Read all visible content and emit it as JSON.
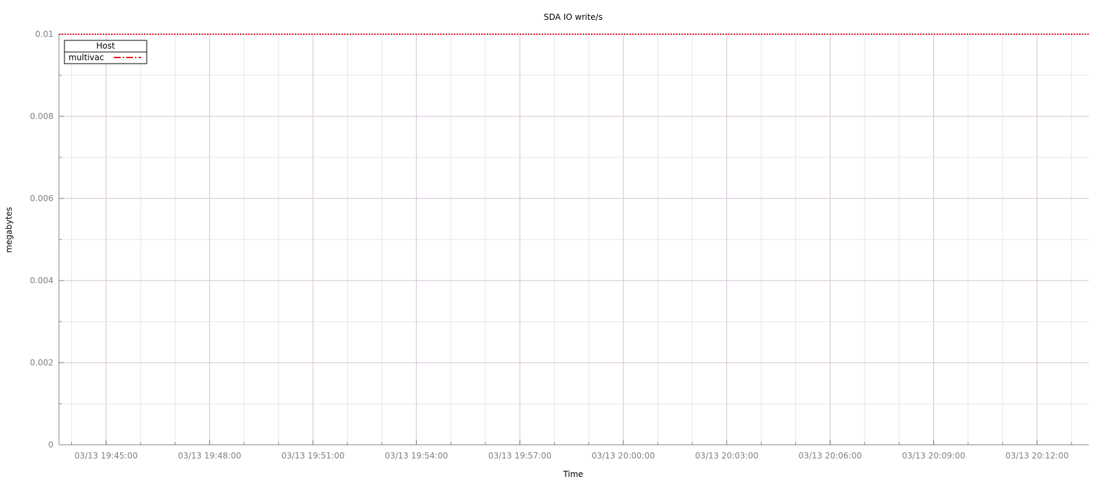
{
  "chart_data": {
    "type": "line",
    "title": "SDA IO write/s",
    "xlabel": "Time",
    "ylabel": "megabytes",
    "ylim": [
      0,
      0.01
    ],
    "y_ticks": [
      "0",
      "0.002",
      "0.004",
      "0.006",
      "0.008",
      "0.01"
    ],
    "y_tick_values": [
      0,
      0.002,
      0.004,
      0.006,
      0.008,
      0.01
    ],
    "x_range": [
      "03/13 19:43:38",
      "03/13 20:13:30"
    ],
    "x_ticks": [
      "03/13 19:45:00",
      "03/13 19:48:00",
      "03/13 19:51:00",
      "03/13 19:54:00",
      "03/13 19:57:00",
      "03/13 20:00:00",
      "03/13 20:03:00",
      "03/13 20:06:00",
      "03/13 20:09:00",
      "03/13 20:12:00"
    ],
    "grid": true,
    "legend": {
      "title": "Host",
      "placement": "top-left"
    },
    "series": [
      {
        "name": "multivac",
        "color": "#e41a1c",
        "line_style": "dash-dot",
        "x": [
          "03/13 19:43:38",
          "03/13 20:13:30"
        ],
        "values": [
          0.01,
          0.01
        ]
      }
    ]
  }
}
